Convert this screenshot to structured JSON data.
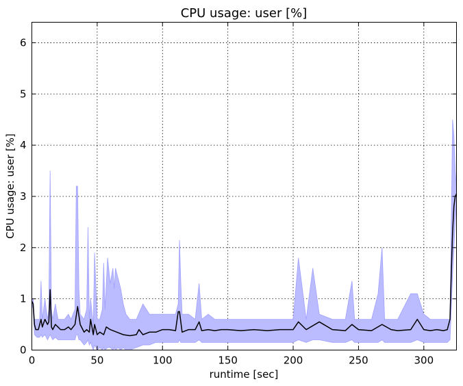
{
  "chart_data": {
    "type": "line",
    "title": "CPU usage: user [%]",
    "xlabel": "runtime [sec]",
    "ylabel": "CPU usage: user [%]",
    "xlim": [
      0,
      325
    ],
    "ylim": [
      0,
      6.4
    ],
    "xticks": [
      0,
      50,
      100,
      150,
      200,
      250,
      300
    ],
    "yticks": [
      0,
      1,
      2,
      3,
      4,
      5,
      6
    ],
    "grid": true,
    "colors": {
      "mean_line": "#000000",
      "band_fill": "#bbbbff",
      "band_edge": "#a0a0ff"
    },
    "series": [
      {
        "kind": "mean",
        "x": [
          0,
          1,
          2,
          3,
          5,
          7,
          8,
          10,
          12,
          13,
          14,
          15,
          16,
          18,
          20,
          22,
          25,
          28,
          30,
          33,
          35,
          37,
          40,
          42,
          44,
          45,
          47,
          48,
          50,
          52,
          55,
          57,
          60,
          65,
          70,
          75,
          80,
          82,
          85,
          90,
          95,
          100,
          105,
          110,
          112,
          113,
          115,
          120,
          125,
          128,
          130,
          135,
          140,
          145,
          150,
          160,
          170,
          180,
          190,
          200,
          204,
          210,
          220,
          230,
          240,
          245,
          250,
          260,
          268,
          275,
          280,
          290,
          295,
          300,
          305,
          310,
          315,
          318,
          320,
          321,
          322,
          323,
          324,
          325
        ],
        "y": [
          0.95,
          0.9,
          0.5,
          0.4,
          0.4,
          0.6,
          0.45,
          0.6,
          0.5,
          0.55,
          1.18,
          0.45,
          0.4,
          0.5,
          0.45,
          0.4,
          0.4,
          0.45,
          0.4,
          0.5,
          0.85,
          0.5,
          0.35,
          0.4,
          0.35,
          0.6,
          0.3,
          0.5,
          0.3,
          0.35,
          0.3,
          0.45,
          0.4,
          0.35,
          0.3,
          0.28,
          0.3,
          0.4,
          0.3,
          0.35,
          0.35,
          0.4,
          0.4,
          0.38,
          0.75,
          0.75,
          0.35,
          0.4,
          0.4,
          0.55,
          0.38,
          0.4,
          0.38,
          0.4,
          0.4,
          0.38,
          0.4,
          0.38,
          0.4,
          0.4,
          0.55,
          0.4,
          0.55,
          0.4,
          0.38,
          0.5,
          0.4,
          0.38,
          0.5,
          0.4,
          0.38,
          0.4,
          0.6,
          0.4,
          0.38,
          0.4,
          0.38,
          0.4,
          0.6,
          1.5,
          2.3,
          2.8,
          3.0,
          3.05
        ]
      },
      {
        "kind": "band",
        "x": [
          0,
          1,
          2,
          4,
          6,
          7,
          8,
          10,
          12,
          13,
          14,
          15,
          16,
          18,
          20,
          22,
          25,
          28,
          30,
          33,
          34,
          35,
          36,
          37,
          40,
          42,
          43,
          44,
          45,
          47,
          48,
          50,
          52,
          54,
          55,
          56,
          58,
          60,
          62,
          63,
          64,
          66,
          68,
          70,
          72,
          75,
          80,
          85,
          90,
          95,
          100,
          105,
          110,
          112,
          113,
          114,
          115,
          120,
          125,
          128,
          130,
          135,
          140,
          150,
          160,
          170,
          180,
          190,
          200,
          204,
          210,
          215,
          220,
          230,
          240,
          245,
          247,
          250,
          260,
          265,
          268,
          270,
          280,
          290,
          295,
          300,
          305,
          310,
          315,
          318,
          320,
          321,
          322,
          323,
          324,
          325
        ],
        "upper": [
          1.0,
          1.0,
          0.6,
          0.6,
          0.6,
          1.35,
          0.6,
          1.0,
          0.6,
          0.8,
          3.5,
          0.8,
          0.6,
          0.9,
          0.6,
          0.6,
          0.6,
          0.7,
          0.6,
          0.8,
          3.2,
          3.2,
          1.2,
          0.7,
          0.6,
          0.8,
          2.4,
          0.6,
          1.0,
          0.5,
          1.9,
          0.6,
          0.6,
          0.8,
          1.7,
          0.8,
          1.8,
          1.3,
          1.6,
          1.2,
          1.6,
          1.4,
          1.2,
          0.9,
          0.7,
          0.6,
          0.6,
          0.9,
          0.7,
          0.7,
          0.7,
          0.7,
          0.7,
          0.9,
          2.15,
          1.3,
          0.7,
          0.7,
          0.6,
          1.3,
          0.6,
          0.7,
          0.6,
          0.6,
          0.6,
          0.6,
          0.6,
          0.6,
          0.6,
          1.8,
          0.6,
          1.6,
          0.7,
          0.6,
          0.6,
          1.35,
          0.6,
          0.6,
          0.6,
          1.1,
          2.0,
          0.6,
          0.6,
          1.1,
          1.1,
          0.7,
          0.6,
          0.6,
          0.6,
          0.6,
          0.6,
          2.5,
          4.5,
          4.2,
          3.5,
          3.2
        ],
        "lower": [
          0.9,
          0.8,
          0.3,
          0.25,
          0.25,
          0.3,
          0.25,
          0.3,
          0.2,
          0.25,
          0.3,
          0.25,
          0.2,
          0.25,
          0.2,
          0.2,
          0.2,
          0.2,
          0.2,
          0.2,
          0.3,
          0.3,
          0.2,
          0.2,
          0.1,
          0.15,
          0.2,
          0.1,
          0.15,
          0.0,
          0.1,
          0.0,
          0.05,
          0.0,
          0.05,
          0.0,
          0.05,
          0.05,
          0.0,
          0.05,
          0.0,
          0.05,
          0.0,
          0.05,
          0.0,
          0.0,
          0.05,
          0.1,
          0.1,
          0.15,
          0.15,
          0.15,
          0.15,
          0.15,
          0.2,
          0.15,
          0.15,
          0.15,
          0.15,
          0.2,
          0.15,
          0.15,
          0.15,
          0.15,
          0.15,
          0.15,
          0.15,
          0.15,
          0.15,
          0.2,
          0.15,
          0.2,
          0.2,
          0.15,
          0.15,
          0.2,
          0.15,
          0.15,
          0.15,
          0.15,
          0.2,
          0.15,
          0.15,
          0.15,
          0.2,
          0.15,
          0.15,
          0.15,
          0.15,
          0.15,
          0.2,
          0.8,
          1.5,
          2.0,
          2.5,
          2.9
        ]
      }
    ]
  }
}
